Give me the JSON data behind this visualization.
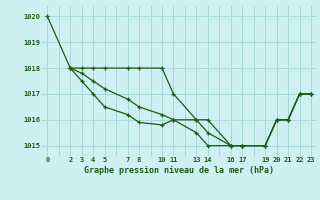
{
  "title": "Graphe pression niveau de la mer (hPa)",
  "bg_color": "#cff0f0",
  "grid_color": "#a8d8d8",
  "line_color": "#1a5c1a",
  "xlim": [
    -0.5,
    23.5
  ],
  "ylim": [
    1014.6,
    1020.4
  ],
  "y_ticks": [
    1015,
    1016,
    1017,
    1018,
    1019,
    1020
  ],
  "x_tick_positions": [
    0,
    2,
    3,
    4,
    5,
    7,
    8,
    10,
    11,
    13,
    14,
    16,
    17,
    19,
    20,
    21,
    22,
    23
  ],
  "x_tick_labels": [
    "0",
    "2",
    "3",
    "4",
    "5",
    "7",
    "8",
    "10",
    "11",
    "13",
    "14",
    "16",
    "17",
    "19",
    "20",
    "21",
    "22",
    "23"
  ],
  "series": [
    {
      "x": [
        0,
        2,
        3,
        4,
        5,
        7,
        8,
        10,
        11,
        13,
        14,
        16,
        17,
        19,
        20,
        21,
        22,
        23
      ],
      "y": [
        1020,
        1018,
        1018,
        1018,
        1018,
        1018,
        1018,
        1018,
        1017,
        1016,
        1016,
        1015,
        1015,
        1015,
        1016,
        1016,
        1017,
        1017
      ]
    },
    {
      "x": [
        2,
        3,
        4,
        5,
        7,
        8,
        10,
        11,
        13,
        14,
        16,
        17,
        19,
        20,
        21,
        22,
        23
      ],
      "y": [
        1018,
        1017.8,
        1017.5,
        1017.2,
        1016.8,
        1016.5,
        1016.2,
        1016,
        1016,
        1015.5,
        1015,
        1015,
        1015,
        1016,
        1016,
        1017,
        1017
      ]
    },
    {
      "x": [
        2,
        3,
        4,
        5,
        7,
        8,
        10,
        11,
        13,
        14,
        16,
        17,
        19,
        20,
        21,
        22,
        23
      ],
      "y": [
        1018,
        1017.5,
        1017.0,
        1016.5,
        1016.2,
        1015.9,
        1015.8,
        1016,
        1015.5,
        1015,
        1015,
        1015,
        1015,
        1016,
        1016,
        1017,
        1017
      ]
    }
  ]
}
